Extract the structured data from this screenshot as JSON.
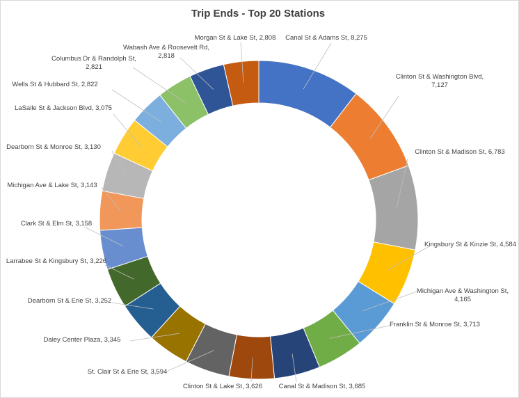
{
  "chart_data": {
    "type": "doughnut",
    "title": "Trip Ends - Top 20 Stations",
    "series": [
      {
        "name": "Canal St & Adams St",
        "value": 8275,
        "label": "8,275",
        "color": "#4472C4"
      },
      {
        "name": "Clinton St & Washington Blvd",
        "value": 7127,
        "label": "7,127",
        "color": "#ED7D31"
      },
      {
        "name": "Clinton St & Madison St",
        "value": 6783,
        "label": "6,783",
        "color": "#A5A5A5"
      },
      {
        "name": "Kingsbury St & Kinzie St",
        "value": 4584,
        "label": "4,584",
        "color": "#FFC000"
      },
      {
        "name": "Michigan Ave & Washington St",
        "value": 4165,
        "label": "4,165",
        "color": "#5B9BD5"
      },
      {
        "name": "Franklin St & Monroe St",
        "value": 3713,
        "label": "3,713",
        "color": "#70AD47"
      },
      {
        "name": "Canal St & Madison St",
        "value": 3685,
        "label": "3,685",
        "color": "#264478"
      },
      {
        "name": "Clinton St & Lake St",
        "value": 3626,
        "label": "3,626",
        "color": "#9E480E"
      },
      {
        "name": "St. Clair St & Erie St",
        "value": 3594,
        "label": "3,594",
        "color": "#636363"
      },
      {
        "name": "Daley Center Plaza",
        "value": 3345,
        "label": "3,345",
        "color": "#997300"
      },
      {
        "name": "Dearborn St & Erie St",
        "value": 3252,
        "label": "3,252",
        "color": "#255E91"
      },
      {
        "name": "Larrabee St & Kingsbury St",
        "value": 3226,
        "label": "3,226",
        "color": "#43682B"
      },
      {
        "name": "Clark St & Elm St",
        "value": 3158,
        "label": "3,158",
        "color": "#698ED0"
      },
      {
        "name": "Michigan Ave & Lake St",
        "value": 3143,
        "label": "3,143",
        "color": "#F1975A"
      },
      {
        "name": "Dearborn St & Monroe St",
        "value": 3130,
        "label": "3,130",
        "color": "#B7B7B7"
      },
      {
        "name": "LaSalle St & Jackson Blvd",
        "value": 3075,
        "label": "3,075",
        "color": "#FFCD33"
      },
      {
        "name": "Wells St & Hubbard St",
        "value": 2822,
        "label": "2,822",
        "color": "#7CAFDD"
      },
      {
        "name": "Columbus Dr & Randolph St",
        "value": 2821,
        "label": "2,821",
        "color": "#8CC168"
      },
      {
        "name": "Wabash Ave & Roosevelt Rd",
        "value": 2818,
        "label": "2,818",
        "color": "#2F5597"
      },
      {
        "name": "Morgan St & Lake St",
        "value": 2808,
        "label": "2,808",
        "color": "#C55A11"
      }
    ]
  }
}
